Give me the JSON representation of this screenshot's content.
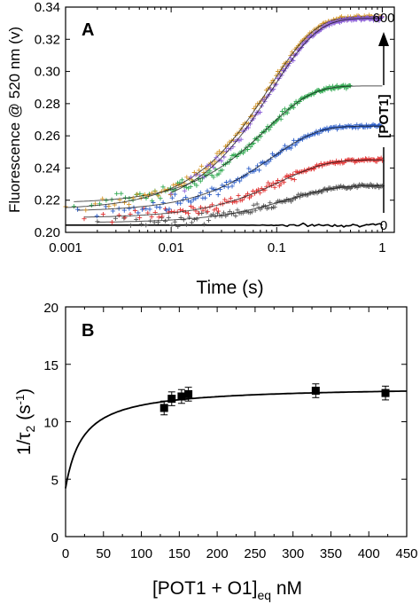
{
  "chart_data": [
    {
      "panel": "A",
      "type": "scatter",
      "ylabel": "Fluorescence @ 520 nm (v)",
      "xlabel": "Time (s)",
      "xscale": "log",
      "xlim": [
        0.001,
        1.3
      ],
      "ylim": [
        0.2,
        0.34
      ],
      "xticks": [
        0.001,
        0.01,
        0.1,
        1
      ],
      "xtick_labels": [
        "0.001",
        "0.01",
        "0.1",
        "1"
      ],
      "yticks": [
        0.2,
        0.22,
        0.24,
        0.26,
        0.28,
        0.3,
        0.32,
        0.34
      ],
      "ytick_labels": [
        "0.20",
        "0.22",
        "0.24",
        "0.26",
        "0.28",
        "0.30",
        "0.32",
        "0.34"
      ],
      "annotation_arrow": {
        "label": "[POT1]",
        "low": "0",
        "high": "600"
      },
      "series": [
        {
          "color": "#000000",
          "fit": {
            "start": 0.2045,
            "end": 0.2045,
            "tau": 0.1
          },
          "noise_line": true
        },
        {
          "color": "#555555",
          "marker": "+",
          "x_start": 0.002,
          "x_end": 1.0,
          "fit": {
            "start": 0.206,
            "end": 0.229,
            "tau": 0.13
          }
        },
        {
          "color": "#e03030",
          "marker": "+",
          "x_start": 0.0015,
          "x_end": 1.0,
          "fit": {
            "start": 0.209,
            "end": 0.245,
            "tau": 0.11
          }
        },
        {
          "color": "#2a5cc8",
          "marker": "+",
          "x_start": 0.0013,
          "x_end": 0.95,
          "fit": {
            "start": 0.213,
            "end": 0.266,
            "tau": 0.09
          }
        },
        {
          "color": "#2fa84f",
          "marker": "+",
          "x_start": 0.0012,
          "x_end": 0.5,
          "fit": {
            "start": 0.218,
            "end": 0.291,
            "tau": 0.08
          }
        },
        {
          "color": "#d4962a",
          "marker": "+",
          "x_start": 0.001,
          "x_end": 1.0,
          "fit": {
            "start": 0.214,
            "end": 0.334,
            "tau": 0.085
          }
        },
        {
          "color": "#8a5ed6",
          "marker": "+",
          "x_start": 0.01,
          "x_end": 1.0,
          "fit": {
            "start": 0.212,
            "end": 0.333,
            "tau": 0.09
          }
        }
      ]
    },
    {
      "panel": "B",
      "type": "scatter",
      "ylabel": "1/τ2 (s-1)",
      "xlabel": "[POT1 + O1]eq nM",
      "xlim": [
        0,
        450
      ],
      "ylim": [
        0,
        20
      ],
      "xticks": [
        0,
        50,
        100,
        150,
        200,
        250,
        300,
        350,
        400,
        450
      ],
      "yticks": [
        0,
        5,
        10,
        15,
        20
      ],
      "points": [
        {
          "x": 130,
          "y": 11.2,
          "err": 0.6
        },
        {
          "x": 140,
          "y": 12.0,
          "err": 0.6
        },
        {
          "x": 153,
          "y": 12.2,
          "err": 0.6
        },
        {
          "x": 162,
          "y": 12.4,
          "err": 0.6
        },
        {
          "x": 330,
          "y": 12.7,
          "err": 0.6
        },
        {
          "x": 422,
          "y": 12.5,
          "err": 0.6
        }
      ],
      "fit": {
        "k_min": 4.2,
        "k_max_add": 8.9,
        "k_half": 23
      }
    }
  ]
}
